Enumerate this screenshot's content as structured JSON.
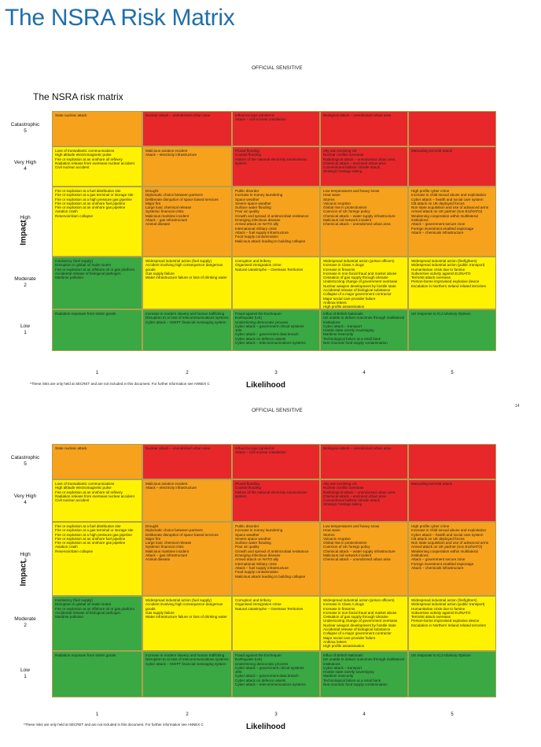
{
  "page_title": "The NSRA Risk Matrix",
  "official_label": "OFFICIAL SENSITIVE",
  "matrix_title": "The NSRA risk matrix",
  "impact_label": "Impact",
  "likelihood_label": "Likelihood",
  "rows": [
    {
      "name": "Catastrophic",
      "num": "5"
    },
    {
      "name": "Very High",
      "num": "4"
    },
    {
      "name": "High",
      "num": "3"
    },
    {
      "name": "Moderate",
      "num": "2"
    },
    {
      "name": "Low",
      "num": "1"
    }
  ],
  "columns": [
    "1",
    "2",
    "3",
    "4",
    "5"
  ],
  "colors": {
    "red": "#e8272a",
    "orange": "#f7a21c",
    "yellow": "#fff200",
    "green": "#3aa843"
  },
  "cells": [
    [
      {
        "color": "orange",
        "text": "State nuclear attack"
      },
      {
        "color": "red",
        "text": "Nuclear attack – unendorsed urban area"
      },
      {
        "color": "red",
        "text": "Influenza-type pandemic\nAttack – civil nuclear installation"
      },
      {
        "color": "red",
        "text": "Biological attack – unendorsed urban area"
      },
      {
        "color": "red",
        "text": ""
      }
    ],
    [
      {
        "color": "yellow",
        "text": "Loss of transatlantic communications\nHigh altitude electromagnetic pulse\nFire or explosion at an onshore oil refinery\nRadiation release from overseas nuclear accident\nCivil nuclear accident"
      },
      {
        "color": "orange",
        "text": "Malicious aviation incident\nAttack – electricity infrastructure"
      },
      {
        "color": "red",
        "text": "Pluvial flooding\nCoastal flooding\nFailure of the national electricity transmission system"
      },
      {
        "color": "red",
        "text": "Ally war involving UK\nNuclear conflict overseas\nRadiological attack – unendorsed urban area\nChemical attack – enclosed urban area\nConventional ballistic missile attack\nStrategic hostage taking"
      },
      {
        "color": "red",
        "text": "Marauding terrorist attack"
      }
    ],
    [
      {
        "color": "yellow",
        "text": "Fire or explosion at a fuel distribution site\nFire or explosion at a gas terminal or storage site\nFire or explosion at a high pressure gas pipeline\nFire or explosion at an onshore fuel pipeline\nFire or explosion at an onshore gas pipeline\nAviation crash\nReservoir/dam collapse"
      },
      {
        "color": "orange",
        "text": "Drought\nDiplomatic choice between partners\nDeliberate disruption of space based services\nMajor fire\nLarge toxic chemical release\nSystemic financial crisis\nMalicious maritime incident\nAttack – gas infrastructure\nAnimal disease"
      },
      {
        "color": "orange",
        "text": "Public disorder\nIncrease in money laundering\nSpace weather\nSevere space weather\nSurface water flooding\nPoor air quality\nGrowth and spread of antimicrobial resistance\nEmerging infectious disease\nArmed attack on NATO ally\nInternational military crisis\nAttack – fuel supply infrastructure\nFood supply contamination\nMalicious attack leading to building collapse"
      },
      {
        "color": "orange",
        "text": "Low temperatures and heavy snow\nHeat wave\nStorms\nVolcanic eruption\nGlobal rise in protectionism\nCoercion of UK foreign policy\nChemical attack – water supply infrastructure\nMalicious rail network incident\nChemical attack – unendorsed urban area"
      },
      {
        "color": "orange",
        "text": "High profile cyber crime\nIncrease in child sexual abuse and exploitation\nCyber attack – health and social care system\nCB attack on UK deployed forces\nNon state acquisition and use of advanced arms\nArmed attack on UK partner (non EU/NATO)\nWeakening cooperation within multilateral institutions\nAttack – government secure zone\nForeign investment enabled espionage\nAttack – chemicals infrastructure"
      }
    ],
    [
      {
        "color": "green",
        "text": "Insolvency (fuel supply)\nDisruption to global oil trade routes\nFire or explosion at an offshore oil or gas platform\nAccidental release of biological pathogen\nMaritime pollution"
      },
      {
        "color": "yellow",
        "text": "Widespread industrial action (fuel supply)\nAccident involving high consequence dangerous goods\nGas supply failure\nWater infrastructure failure or loss of drinking water"
      },
      {
        "color": "yellow",
        "text": "Corruption and bribery\nOrganised immigration crime\nNatural catastrophe – Overseas Territories"
      },
      {
        "color": "yellow",
        "text": "Widespread industrial action (prison officers)\nIncrease in Class A drugs\nIncrease in firearms\nIncrease in non-facial fraud and market abuse\nCessation of gas supply through Ukraine\nUnderscoring change of government overseas\nNuclear weapon development by hostile state\nAccidental release of biological substance\nCollapse of a major government contractor\nMajor social care provider failure\nAnthrax letters\nHigh profile assassination"
      },
      {
        "color": "yellow",
        "text": "Widespread industrial action (firefighters)\nWidespread industrial action (public transport)\nHumanitarian crisis due to famine\nSubversive activity against EU/NATO\nTerrorist attack overseas\nPerson-borne improvised explosive device\nEscalation in Northern Ireland related terrorism"
      }
    ],
    [
      {
        "color": "green",
        "text": "Radiation exposure from stolen goods"
      },
      {
        "color": "green",
        "text": "Increase in modern slavery and human trafficking\nDisruption to or loss of telecommunications systems\nCyber attack – SWIFT financial messaging system"
      },
      {
        "color": "green",
        "text": "Fraud against the Exchequer\nEarthquake (UK)\nUndermining democratic process\nCyber attack – government critical systems\nJets\nCyber attack – government data breach\nCyber attack on defence assets\nCyber attack – telecommunications systems"
      },
      {
        "color": "green",
        "text": "Influx of British Nationals\nUK unable to deliver outcomes through multilateral institutions\nCyber attack – transport\nHostile state overtly sovereignty\nMaritime insecurity\nTechnological failure at a retail bank\nNon-zoonotic food supply contamination"
      },
      {
        "color": "green",
        "text": "UK response to ICJ Advisory Opinion"
      }
    ]
  ],
  "footnote": "*These risks are only held at SECRET and are not included in this document. For further information see ANNEX C",
  "page_number": "14"
}
